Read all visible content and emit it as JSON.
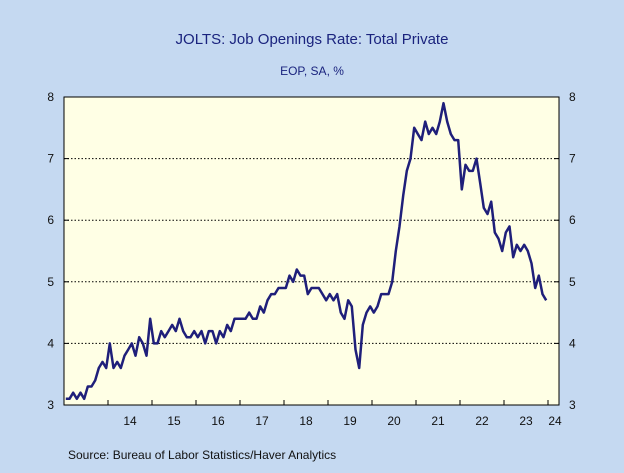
{
  "colors": {
    "background": "#C5D9F1",
    "plot_background": "#FFFFE5",
    "series": "#1F1F7A",
    "title": "#1A237E",
    "text": "#111111"
  },
  "chart_data": {
    "type": "line",
    "title": "JOLTS: Job Openings Rate: Total Private",
    "subtitle": "EOP, SA, %",
    "source": "Source:  Bureau of Labor Statistics/Haver Analytics",
    "xlim": [
      2013.0,
      2024.25
    ],
    "ylim": [
      3,
      8
    ],
    "y_ticks": [
      3,
      4,
      5,
      6,
      7,
      8
    ],
    "y_tick_labels": [
      "3",
      "4",
      "5",
      "6",
      "7",
      "8"
    ],
    "x_tick_labels": [
      {
        "label": "14",
        "x": 2014.5
      },
      {
        "label": "15",
        "x": 2015.5
      },
      {
        "label": "16",
        "x": 2016.5
      },
      {
        "label": "17",
        "x": 2017.5
      },
      {
        "label": "18",
        "x": 2018.5
      },
      {
        "label": "19",
        "x": 2019.5
      },
      {
        "label": "20",
        "x": 2020.5
      },
      {
        "label": "21",
        "x": 2021.5
      },
      {
        "label": "22",
        "x": 2022.5
      },
      {
        "label": "23",
        "x": 2023.5
      },
      {
        "label": "24",
        "x": 2024.5
      }
    ],
    "x_minor_ticks": [
      2014,
      2015,
      2016,
      2017,
      2018,
      2019,
      2020,
      2021,
      2022,
      2023,
      2024
    ],
    "gridlines": "horizontal dotted at 4, 5, 6, 7",
    "axes": "left and right y-axes",
    "series": [
      {
        "x_start": 2013.0,
        "frequency": "monthly",
        "values": [
          3.1,
          3.1,
          3.2,
          3.1,
          3.2,
          3.1,
          3.3,
          3.3,
          3.4,
          3.6,
          3.7,
          3.6,
          4.0,
          3.6,
          3.7,
          3.6,
          3.8,
          3.9,
          4.0,
          3.8,
          4.1,
          4.0,
          3.8,
          4.4,
          4.0,
          4.0,
          4.2,
          4.1,
          4.2,
          4.3,
          4.2,
          4.4,
          4.2,
          4.1,
          4.1,
          4.2,
          4.1,
          4.2,
          4.0,
          4.2,
          4.2,
          4.0,
          4.2,
          4.1,
          4.3,
          4.2,
          4.4,
          4.4,
          4.4,
          4.4,
          4.5,
          4.4,
          4.4,
          4.6,
          4.5,
          4.7,
          4.8,
          4.8,
          4.9,
          4.9,
          4.9,
          5.1,
          5.0,
          5.2,
          5.1,
          5.1,
          4.8,
          4.9,
          4.9,
          4.9,
          4.8,
          4.7,
          4.8,
          4.7,
          4.8,
          4.5,
          4.4,
          4.7,
          4.6,
          3.9,
          3.6,
          4.3,
          4.5,
          4.6,
          4.5,
          4.6,
          4.8,
          4.8,
          4.8,
          5.0,
          5.5,
          5.9,
          6.4,
          6.8,
          7.0,
          7.5,
          7.4,
          7.3,
          7.6,
          7.4,
          7.5,
          7.4,
          7.6,
          7.9,
          7.6,
          7.4,
          7.3,
          7.3,
          6.5,
          6.9,
          6.8,
          6.8,
          7.0,
          6.6,
          6.2,
          6.1,
          6.3,
          5.8,
          5.7,
          5.5,
          5.8,
          5.9,
          5.4,
          5.6,
          5.5,
          5.6,
          5.5,
          5.3,
          4.9,
          5.1,
          4.8,
          4.7
        ]
      }
    ]
  }
}
